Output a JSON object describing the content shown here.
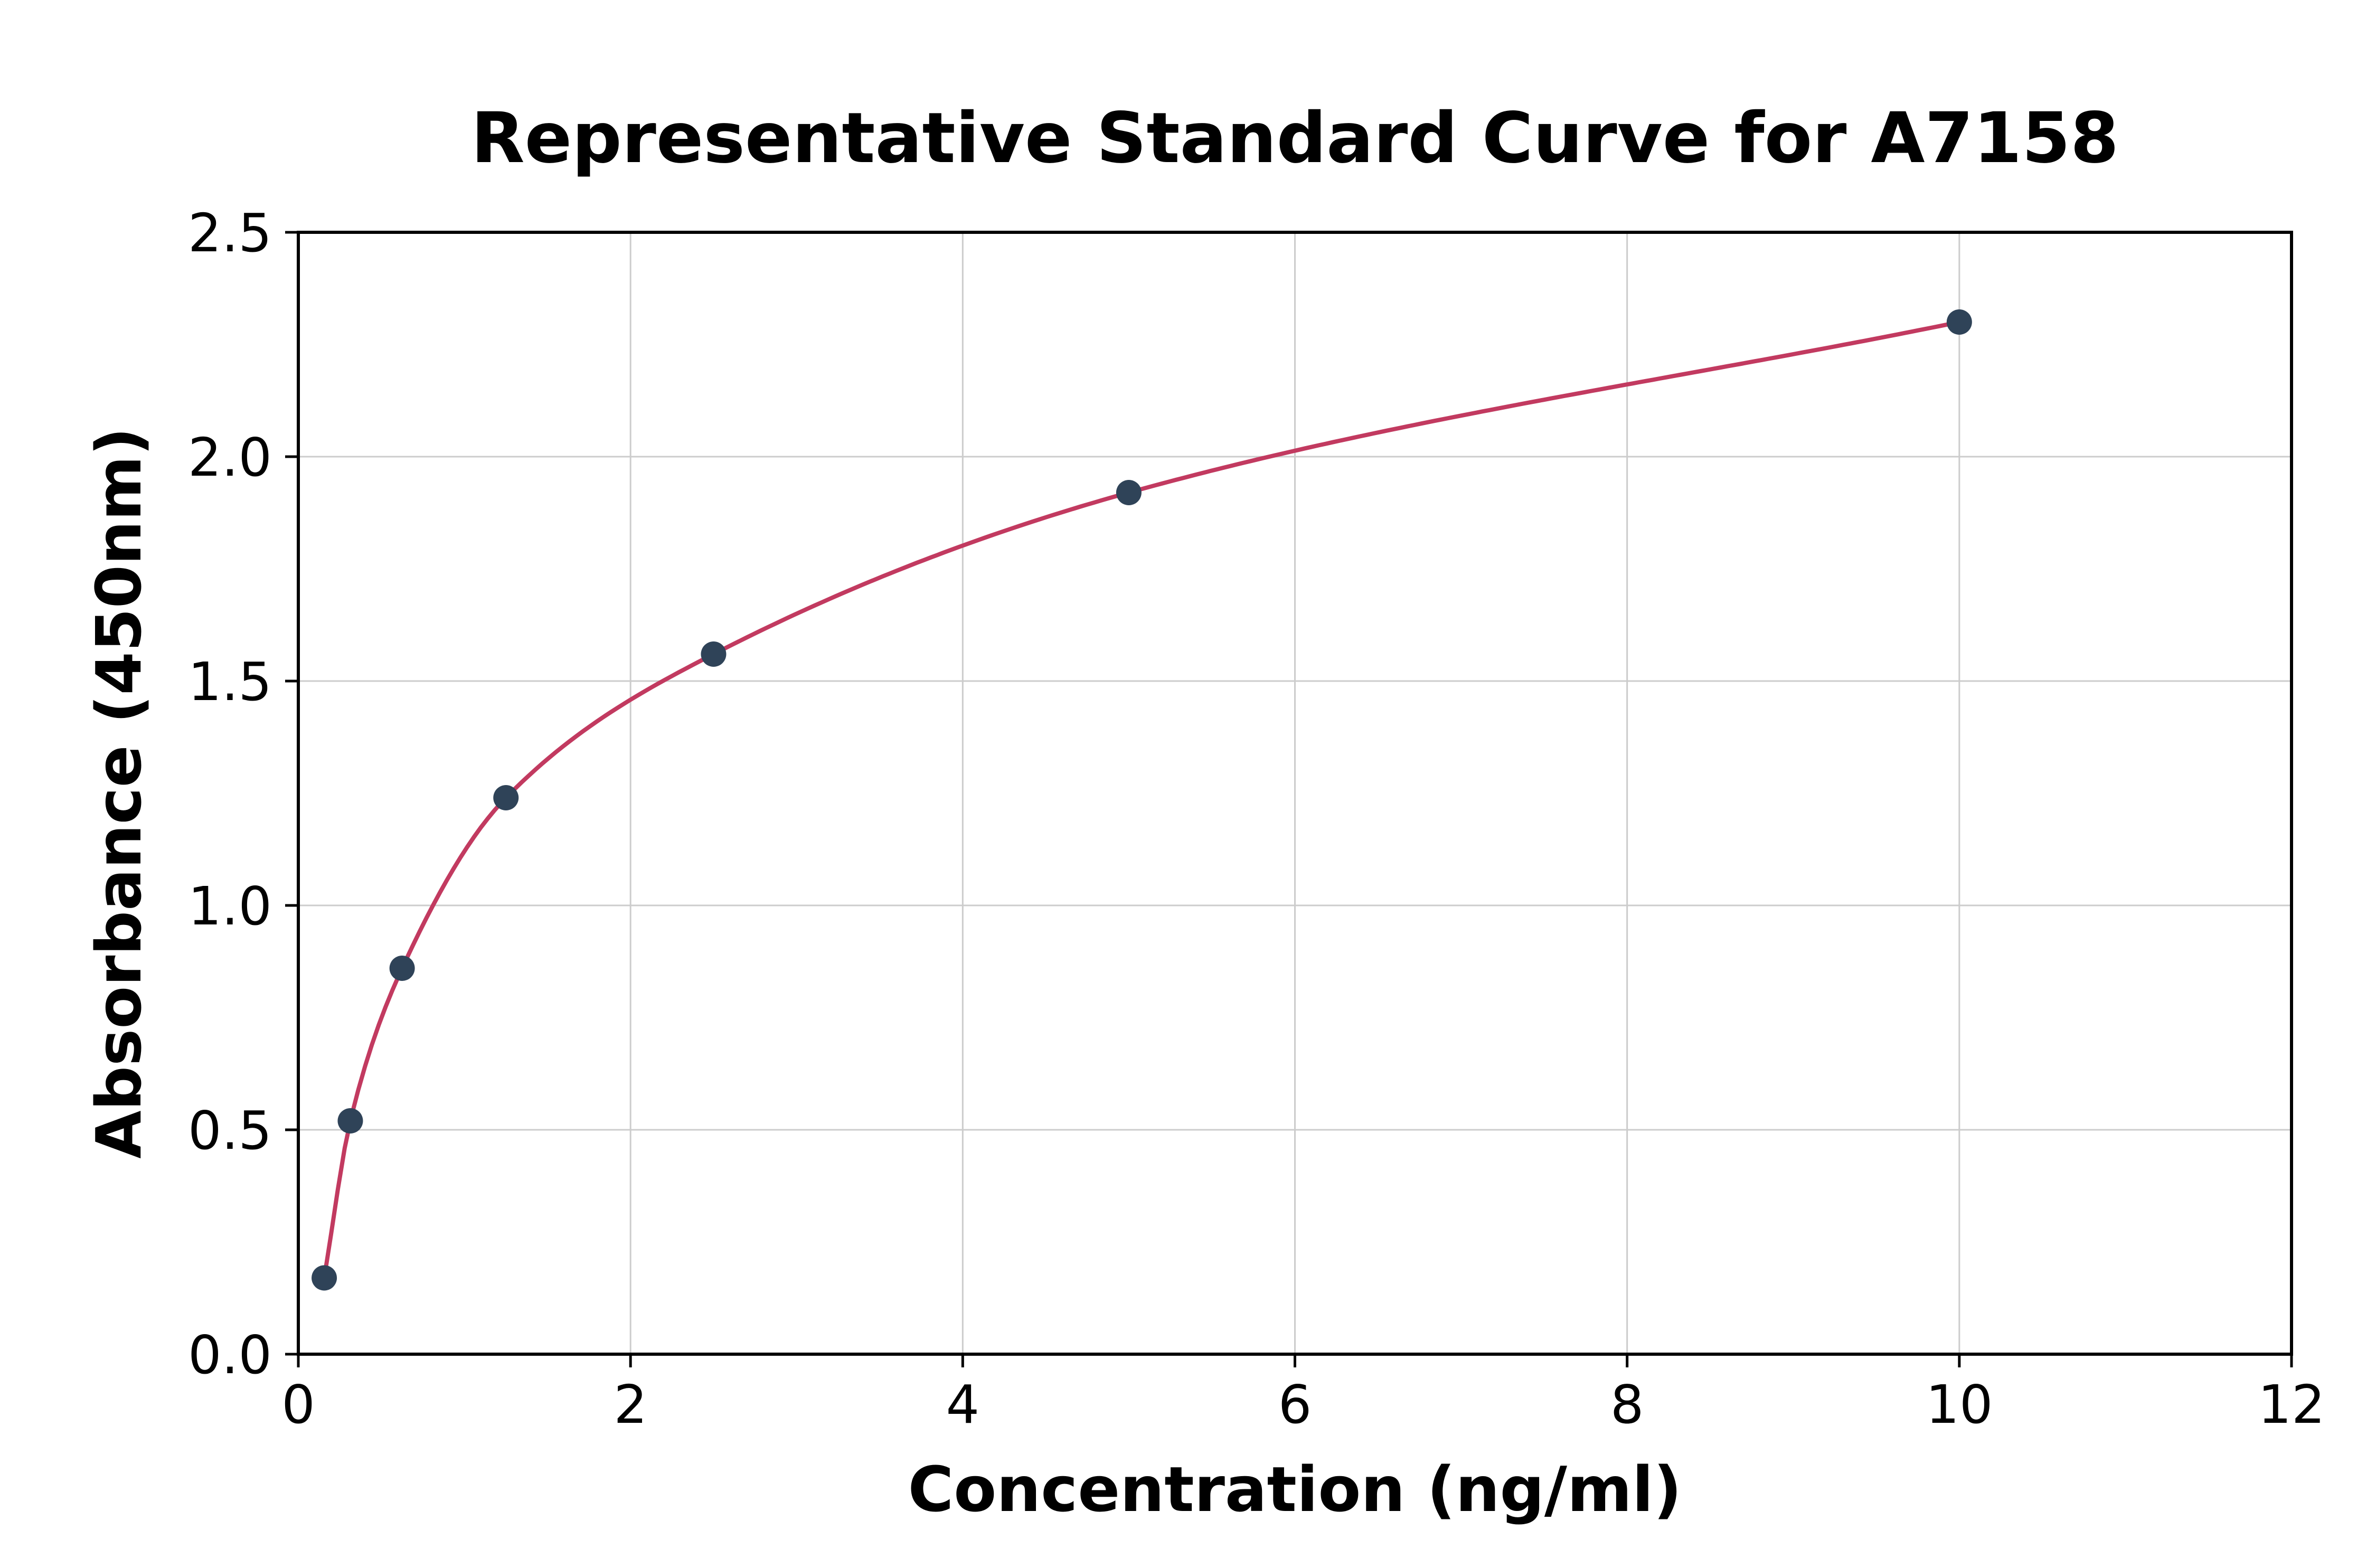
{
  "chart_data": {
    "type": "scatter",
    "title": "Representative Standard Curve for A7158",
    "xlabel": "Concentration (ng/ml)",
    "ylabel": "Absorbance (450nm)",
    "x": [
      0.156,
      0.313,
      0.625,
      1.25,
      2.5,
      5,
      10
    ],
    "y": [
      0.17,
      0.52,
      0.86,
      1.24,
      1.56,
      1.92,
      2.3
    ],
    "xlim": [
      0,
      12
    ],
    "ylim": [
      0,
      2.5
    ],
    "xticks": [
      0,
      2,
      4,
      6,
      8,
      10,
      12
    ],
    "yticks": [
      0,
      0.5,
      1,
      1.5,
      2,
      2.5
    ],
    "x_tick_labels": [
      "0",
      "2",
      "4",
      "6",
      "8",
      "10",
      "12"
    ],
    "y_tick_labels": [
      "0.0",
      "0.5",
      "1.0",
      "1.5",
      "2.0",
      "2.5"
    ],
    "grid": true,
    "legend_position": "none",
    "curve_color": "#c23a60",
    "point_color": "#2f4358",
    "grid_color": "#cccccc",
    "axis_color": "#000000",
    "background_color": "#ffffff"
  }
}
